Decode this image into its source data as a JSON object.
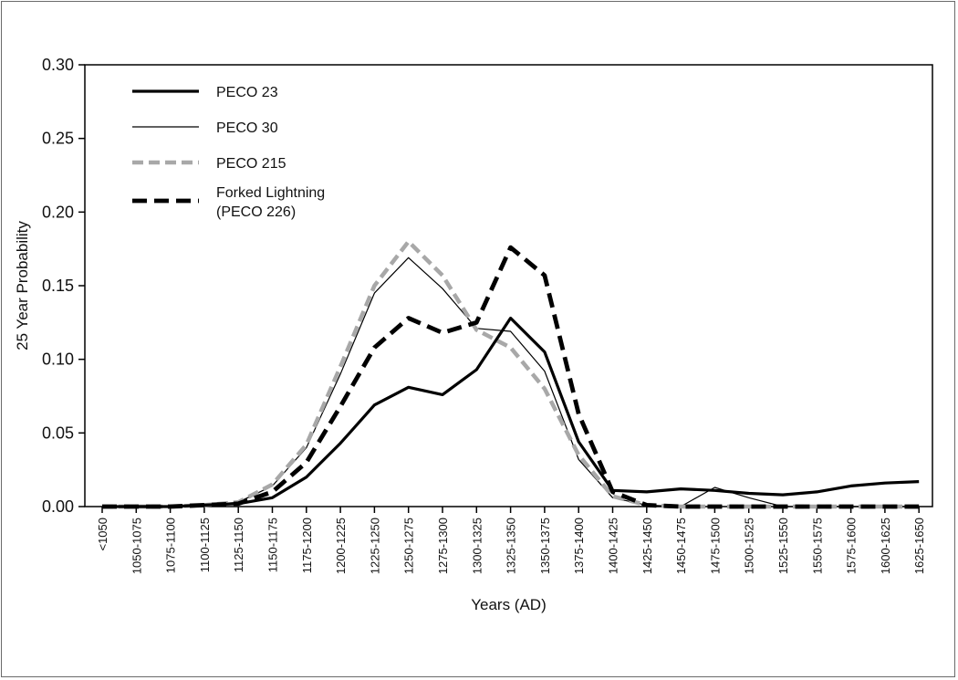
{
  "chart_data": {
    "type": "line",
    "xlabel": "Years (AD)",
    "ylabel": "25 Year Probability",
    "ylim": [
      0,
      0.3
    ],
    "yticks": [
      "0.00",
      "0.05",
      "0.10",
      "0.15",
      "0.20",
      "0.25",
      "0.30"
    ],
    "grid": false,
    "legend_position": "top-left",
    "categories": [
      "<1050",
      "1050-1075",
      "1075-1100",
      "1100-1125",
      "1125-1150",
      "1150-1175",
      "1175-1200",
      "1200-1225",
      "1225-1250",
      "1250-1275",
      "1275-1300",
      "1300-1325",
      "1325-1350",
      "1350-1375",
      "1375-1400",
      "1400-1425",
      "1425-1450",
      "1450-1475",
      "1475-1500",
      "1500-1525",
      "1525-1550",
      "1550-1575",
      "1575-1600",
      "1600-1625",
      "1625-1650"
    ],
    "series": [
      {
        "name": "PECO 23",
        "style": "thick-solid",
        "color": "#000000",
        "values": [
          0.0,
          0.0,
          0.0,
          0.001,
          0.002,
          0.006,
          0.02,
          0.043,
          0.069,
          0.081,
          0.076,
          0.093,
          0.128,
          0.105,
          0.044,
          0.011,
          0.01,
          0.012,
          0.011,
          0.009,
          0.008,
          0.01,
          0.014,
          0.016,
          0.017
        ]
      },
      {
        "name": "PECO 30",
        "style": "thin-solid",
        "color": "#000000",
        "values": [
          0.0,
          0.0,
          0.0,
          0.001,
          0.003,
          0.014,
          0.04,
          0.09,
          0.145,
          0.169,
          0.148,
          0.121,
          0.119,
          0.092,
          0.032,
          0.006,
          0.001,
          0.0,
          0.013,
          0.006,
          0.0,
          0.0,
          0.0,
          0.0,
          0.0
        ]
      },
      {
        "name": "PECO 215",
        "style": "gray-dashed",
        "color": "#a8a8a8",
        "values": [
          0.0,
          0.0,
          0.0,
          0.001,
          0.003,
          0.015,
          0.042,
          0.095,
          0.15,
          0.18,
          0.157,
          0.12,
          0.108,
          0.08,
          0.035,
          0.007,
          0.001,
          0.0,
          0.0,
          0.0,
          0.0,
          0.0,
          0.0,
          0.0,
          0.0
        ]
      },
      {
        "name": "Forked Lightning (PECO 226)",
        "name_lines": [
          "Forked Lightning",
          "(PECO 226)"
        ],
        "style": "thick-dashed",
        "color": "#000000",
        "values": [
          0.0,
          0.0,
          0.0,
          0.001,
          0.002,
          0.01,
          0.03,
          0.068,
          0.108,
          0.128,
          0.118,
          0.125,
          0.176,
          0.157,
          0.063,
          0.01,
          0.001,
          0.0,
          0.0,
          0.0,
          0.0,
          0.0,
          0.0,
          0.0,
          0.0
        ]
      }
    ]
  }
}
